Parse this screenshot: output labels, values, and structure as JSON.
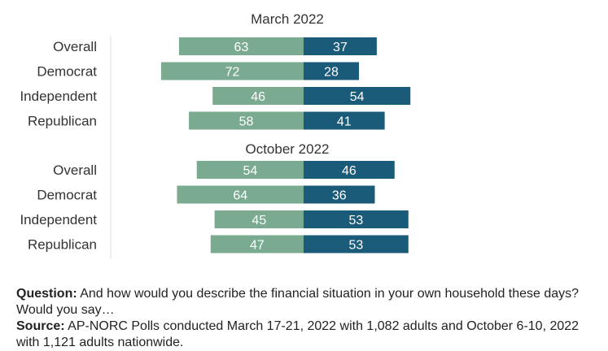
{
  "chart_data": {
    "type": "bar",
    "orientation": "horizontal-diverging",
    "colors": {
      "left": "#7aaa8f",
      "right": "#1b5b7a",
      "axis": "#d9d9d9"
    },
    "panels": [
      {
        "title": "March 2022",
        "categories": [
          "Overall",
          "Democrat",
          "Independent",
          "Republican"
        ],
        "series": [
          {
            "side": "left",
            "values": [
              63,
              72,
              46,
              58
            ]
          },
          {
            "side": "right",
            "values": [
              37,
              28,
              54,
              41
            ]
          }
        ]
      },
      {
        "title": "October 2022",
        "categories": [
          "Overall",
          "Democrat",
          "Independent",
          "Republican"
        ],
        "series": [
          {
            "side": "left",
            "values": [
              54,
              64,
              45,
              47
            ]
          },
          {
            "side": "right",
            "values": [
              46,
              36,
              53,
              53
            ]
          }
        ]
      }
    ]
  },
  "footnote": {
    "question_label": "Question:",
    "question_text": "And how would you describe the financial situation in your own household these days? Would you say…",
    "source_label": "Source:",
    "source_text": "AP-NORC Polls conducted March 17-21, 2022 with 1,082 adults and October 6-10, 2022 with 1,121 adults nationwide."
  }
}
